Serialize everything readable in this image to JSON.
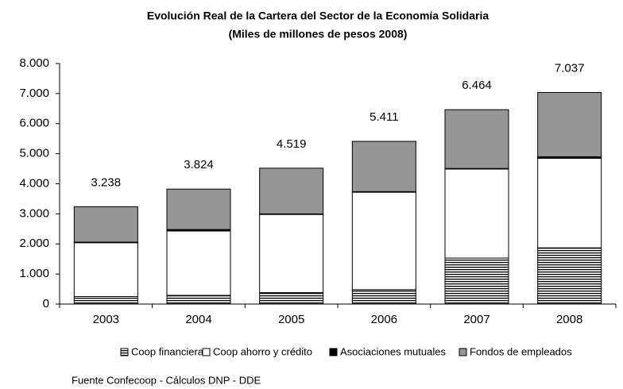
{
  "chart_data": {
    "type": "stacked-bar",
    "title": "Evolución Real de la Cartera del Sector de la Economía Solidaria",
    "subtitle": "(Miles de millones de pesos 2008)",
    "categories": [
      "2003",
      "2004",
      "2005",
      "2006",
      "2007",
      "2008"
    ],
    "series": [
      {
        "name": "Coop financieras",
        "color": "#000000",
        "pattern": "horizontal-lines",
        "values": [
          250,
          290,
          380,
          480,
          1530,
          1870
        ]
      },
      {
        "name": "Coop ahorro y crédito",
        "color": "#ffffff",
        "values": [
          1790,
          2140,
          2600,
          3240,
          2960,
          2980
        ]
      },
      {
        "name": "Asociaciones mutuales",
        "color": "#000000",
        "values": [
          20,
          50,
          20,
          20,
          20,
          50
        ]
      },
      {
        "name": "Fondos de empleados",
        "color": "#969696",
        "values": [
          1178,
          1344,
          1519,
          1671,
          1954,
          2137
        ]
      }
    ],
    "totals": {
      "values": [
        3238,
        3824,
        4519,
        5411,
        6464,
        7037
      ],
      "value_labels": [
        "3.238",
        "3.824",
        "4.519",
        "5.411",
        "6.464",
        "7.037"
      ]
    },
    "ylim": [
      0,
      8000
    ],
    "yticks": [
      0,
      {
        "value": 1000,
        "label": "1.000"
      },
      {
        "value": 2000,
        "label": "2.000"
      },
      {
        "value": 3000,
        "label": "3.000"
      },
      {
        "value": 4000,
        "label": "4.000"
      },
      {
        "value": 5000,
        "label": "5.000"
      },
      {
        "value": 6000,
        "label": "6.000"
      },
      {
        "value": 7000,
        "label": "7.000"
      },
      {
        "value": 8000,
        "label": "8.000"
      }
    ],
    "grid": false,
    "source": "Fuente Confecoop - Cálculos DNP - DDE"
  }
}
